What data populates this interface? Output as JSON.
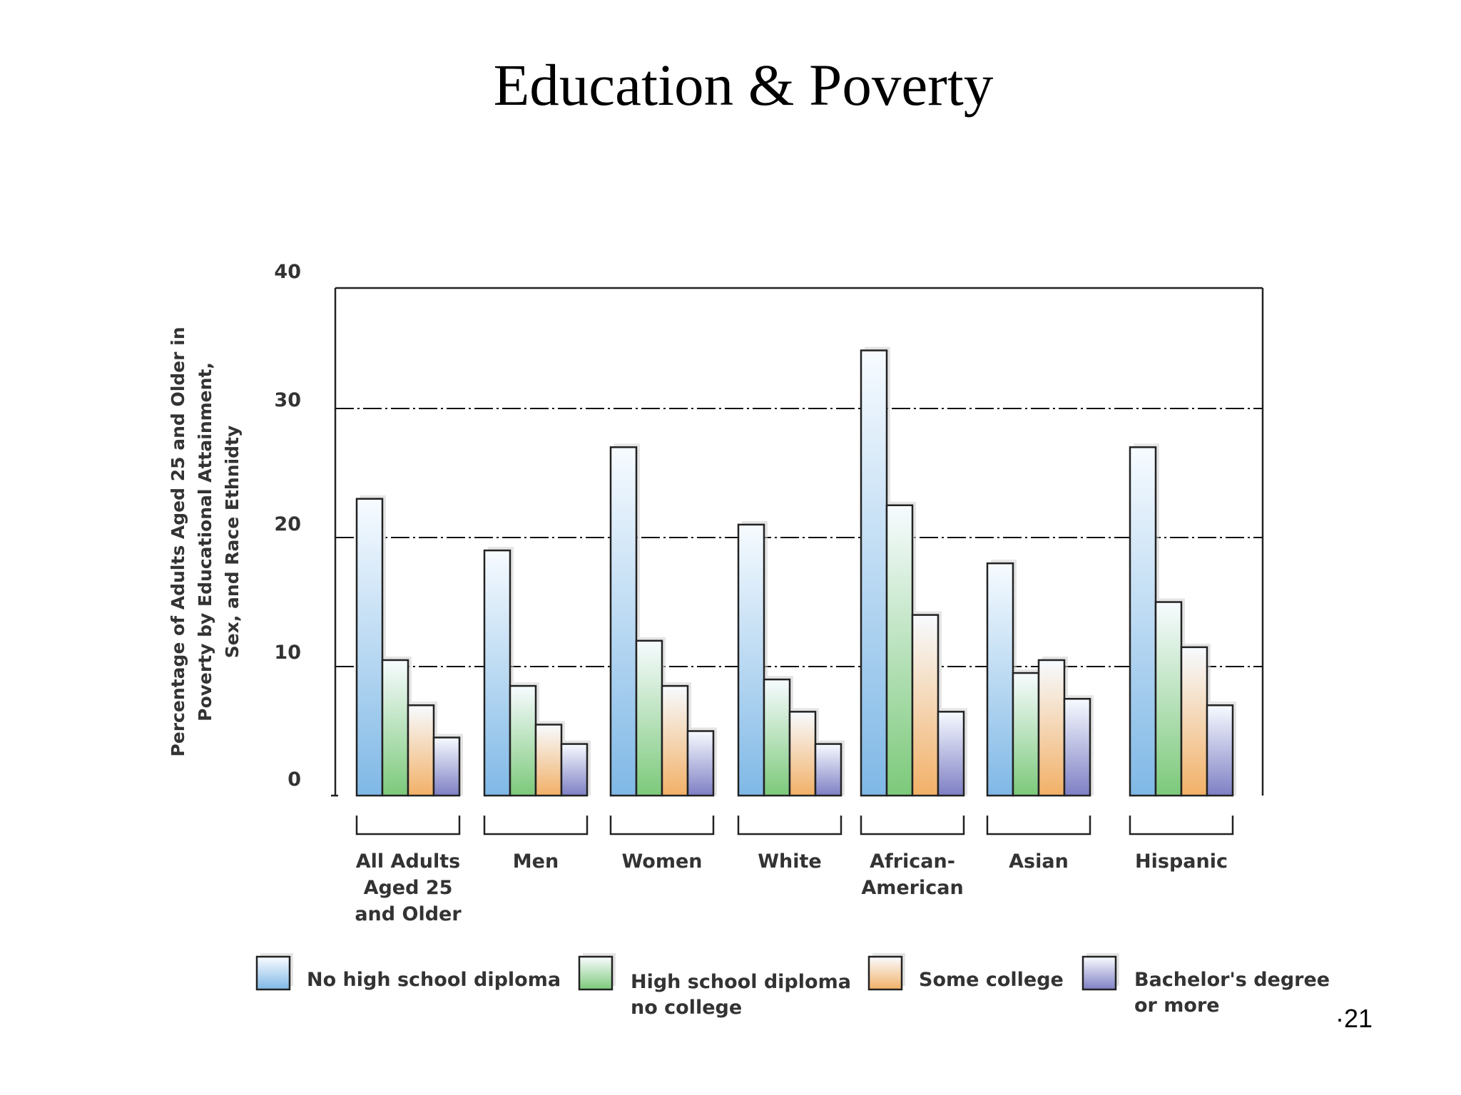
{
  "slide": {
    "title": "Education & Poverty",
    "page_number": "·21"
  },
  "colors": {
    "no_hs": "#7fb8e6",
    "hs": "#7cc97a",
    "some_college": "#f2b067",
    "bachelors": "#7e7fc4"
  },
  "chart_data": {
    "type": "bar",
    "title": "",
    "ylabel": "Percentage of Adults Aged 25 and Older in Poverty by Educational Attainment, Sex, and Race Ethnidty",
    "ylabel_lines": [
      "Percentage of Adults Aged 25 and Older in",
      "Poverty by Educational Attainment,",
      "Sex, and Race Ethnidty"
    ],
    "xlabel": "",
    "ylim": [
      0,
      40
    ],
    "yticks": [
      0,
      10,
      20,
      30,
      40
    ],
    "grid": true,
    "grid_lines": [
      10,
      20,
      30
    ],
    "legend_position": "bottom",
    "categories": [
      "All Adults Aged 25 and Older",
      "Men",
      "Women",
      "White",
      "African-American",
      "Asian",
      "Hispanic"
    ],
    "category_label_lines": [
      [
        "All Adults",
        "Aged 25",
        "and Older"
      ],
      [
        "Men"
      ],
      [
        "Women"
      ],
      [
        "White"
      ],
      [
        "African-",
        "American"
      ],
      [
        "Asian"
      ],
      [
        "Hispanic"
      ]
    ],
    "series": [
      {
        "name": "No high school diploma",
        "legend_lines": [
          "No high school diploma"
        ],
        "color": "#7fb8e6",
        "values": [
          23,
          19,
          27,
          21,
          34.5,
          18,
          27
        ]
      },
      {
        "name": "High school diploma no college",
        "legend_lines": [
          "High school diploma",
          "no college"
        ],
        "color": "#7cc97a",
        "values": [
          10.5,
          8.5,
          12,
          9,
          22.5,
          9.5,
          15
        ]
      },
      {
        "name": "Some college",
        "legend_lines": [
          "Some college"
        ],
        "color": "#f2b067",
        "values": [
          7,
          5.5,
          8.5,
          6.5,
          14,
          10.5,
          11.5
        ]
      },
      {
        "name": "Bachelor's degree or more",
        "legend_lines": [
          "Bachelor's degree",
          "or more"
        ],
        "color": "#7e7fc4",
        "values": [
          4.5,
          4,
          5,
          4,
          6.5,
          7.5,
          7
        ]
      }
    ]
  }
}
